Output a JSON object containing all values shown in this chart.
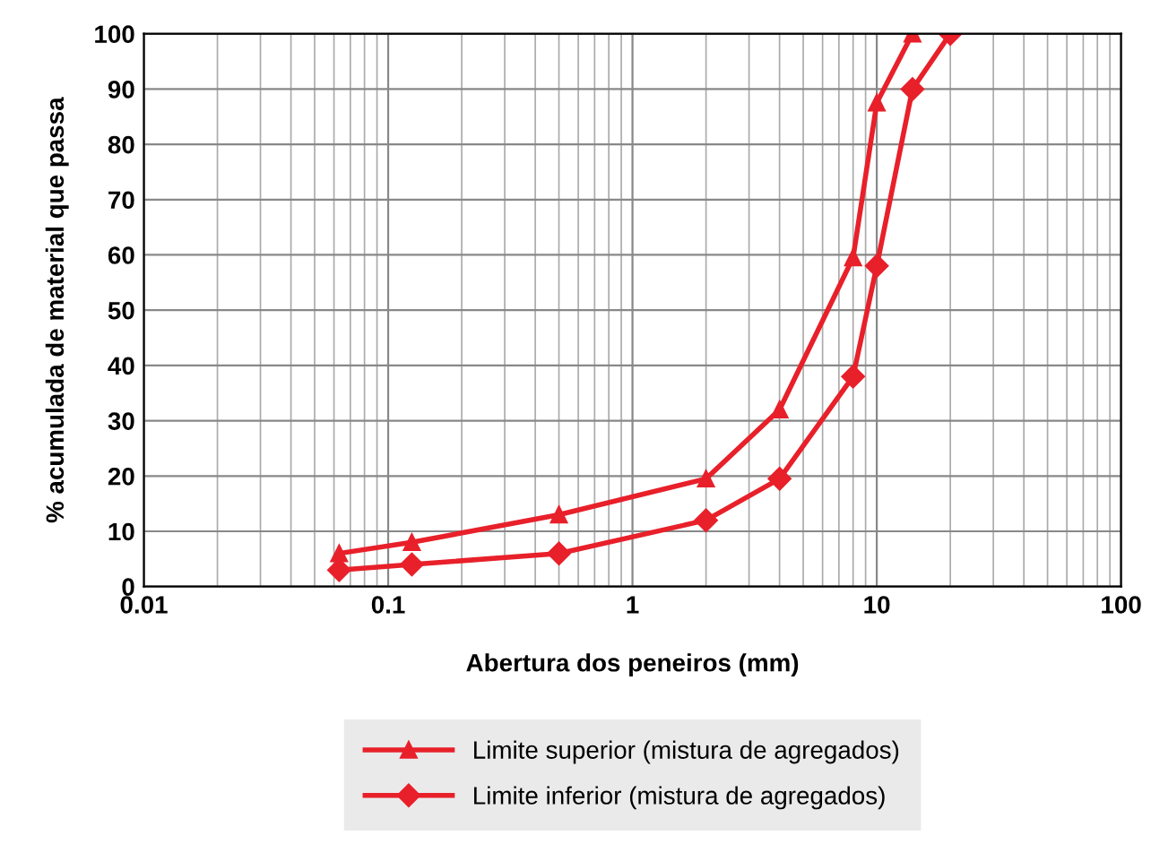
{
  "chart_data": {
    "type": "line",
    "xlabel": "Abertura dos peneiros (mm)",
    "ylabel": "% acumulada de material que passa",
    "log": "x",
    "xlim": [
      0.01,
      100
    ],
    "xticks": [
      0.01,
      0.1,
      1,
      10,
      100
    ],
    "ylim": [
      0,
      100
    ],
    "yticks": [
      0,
      10,
      20,
      30,
      40,
      50,
      60,
      70,
      80,
      90,
      100
    ],
    "grid": true,
    "legend": "bottom",
    "line_style": "solid",
    "series": [
      {
        "name": "Limite superior (mistura de agregados)",
        "color": "#e8202a",
        "marker": "triangle",
        "x": [
          0.063,
          0.125,
          0.5,
          2,
          4,
          8,
          10,
          14
        ],
        "values": [
          6,
          8,
          13,
          19.5,
          32,
          59.5,
          87.5,
          100
        ]
      },
      {
        "name": "Limite inferior (mistura de agregados)",
        "color": "#e8202a",
        "marker": "diamond",
        "x": [
          0.063,
          0.125,
          0.5,
          2,
          4,
          8,
          10,
          14,
          20
        ],
        "values": [
          3,
          4,
          6,
          12,
          19.5,
          38,
          58,
          90,
          100
        ]
      }
    ]
  }
}
